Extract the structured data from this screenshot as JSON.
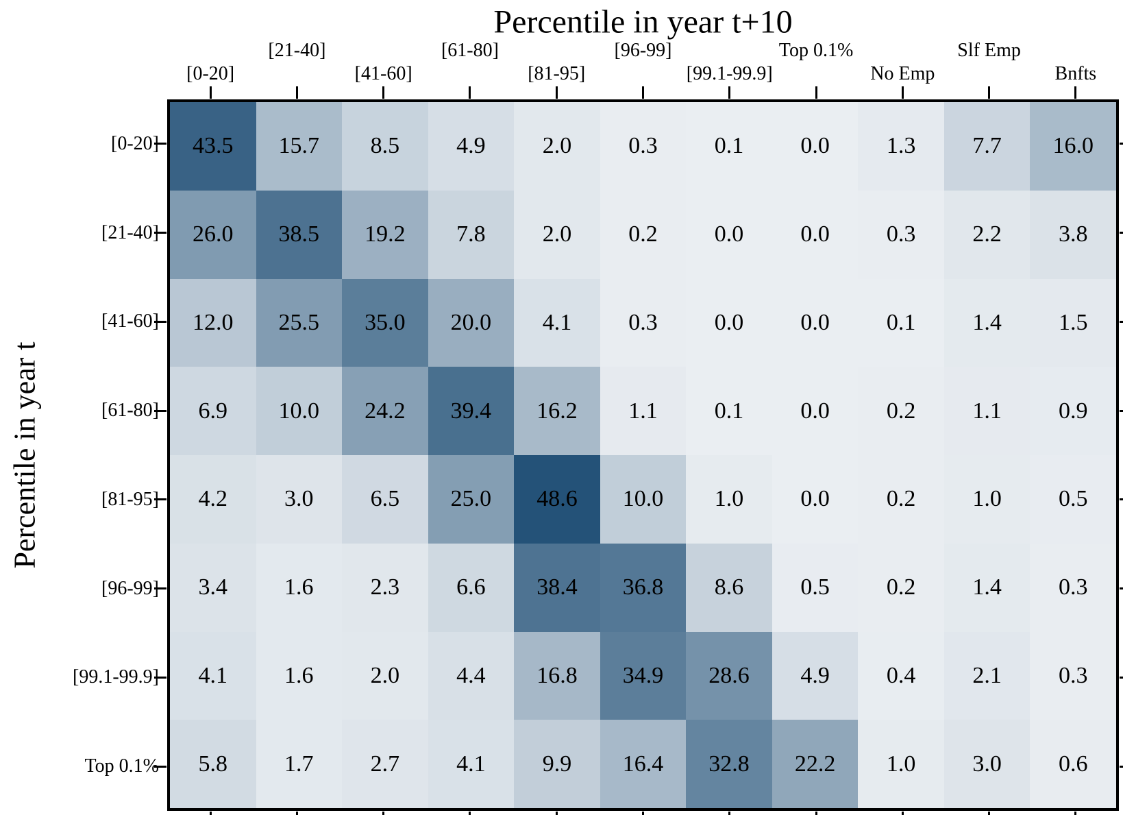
{
  "chart_data": {
    "type": "heatmap",
    "title": "Percentile in year t+10",
    "xlabel": "Percentile in year t+10",
    "ylabel": "Percentile in year t",
    "columns": [
      "[0-20]",
      "[21-40]",
      "[41-60]",
      "[61-80]",
      "[81-95]",
      "[96-99]",
      "[99.1-99.9]",
      "Top 0.1%",
      "No Emp",
      "Slf Emp",
      "Bnfts"
    ],
    "rows": [
      "[0-20]",
      "[21-40]",
      "[41-60]",
      "[61-80]",
      "[81-95]",
      "[96-99]",
      "[99.1-99.9]",
      "Top 0.1%"
    ],
    "values": [
      [
        43.5,
        15.7,
        8.5,
        4.9,
        2.0,
        0.3,
        0.1,
        0.0,
        1.3,
        7.7,
        16.0
      ],
      [
        26.0,
        38.5,
        19.2,
        7.8,
        2.0,
        0.2,
        0.0,
        0.0,
        0.3,
        2.2,
        3.8
      ],
      [
        12.0,
        25.5,
        35.0,
        20.0,
        4.1,
        0.3,
        0.0,
        0.0,
        0.1,
        1.4,
        1.5
      ],
      [
        6.9,
        10.0,
        24.2,
        39.4,
        16.2,
        1.1,
        0.1,
        0.0,
        0.2,
        1.1,
        0.9
      ],
      [
        4.2,
        3.0,
        6.5,
        25.0,
        48.6,
        10.0,
        1.0,
        0.0,
        0.2,
        1.0,
        0.5
      ],
      [
        3.4,
        1.6,
        2.3,
        6.6,
        38.4,
        36.8,
        8.6,
        0.5,
        0.2,
        1.4,
        0.3
      ],
      [
        4.1,
        1.6,
        2.0,
        4.4,
        16.8,
        34.9,
        28.6,
        4.9,
        0.4,
        2.1,
        0.3
      ],
      [
        5.8,
        1.7,
        2.7,
        4.1,
        9.9,
        16.4,
        32.8,
        22.2,
        1.0,
        3.0,
        0.6
      ]
    ],
    "value_decimals": 1,
    "colormap": {
      "low": "#eaeef2",
      "high": "#245278",
      "vmin": 0,
      "vmax": 48.6
    },
    "text_color": "#000000",
    "legend": "none",
    "grid": false
  }
}
